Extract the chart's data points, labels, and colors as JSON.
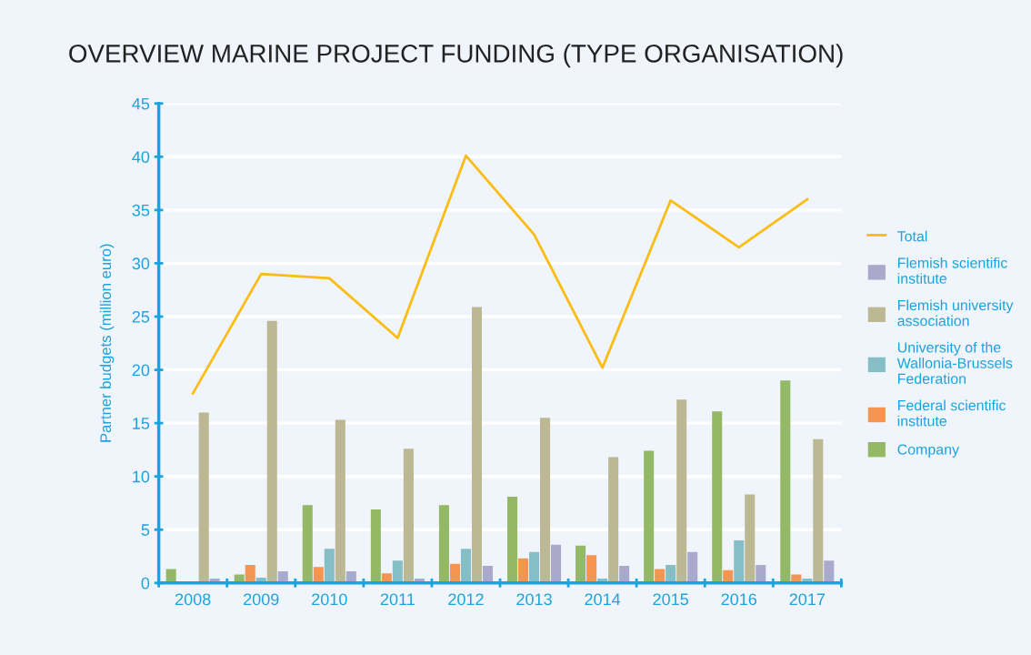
{
  "chart_data": {
    "type": "bar",
    "title": "OVERVIEW MARINE PROJECT FUNDING (TYPE ORGANISATION)",
    "ylabel": "Partner budgets (million euro)",
    "categories": [
      "2008",
      "2009",
      "2010",
      "2011",
      "2012",
      "2013",
      "2014",
      "2015",
      "2016",
      "2017"
    ],
    "series": [
      {
        "name": "Total",
        "type": "line",
        "color": "#fbbc14",
        "values": [
          17.8,
          29.0,
          28.6,
          23.0,
          40.1,
          32.7,
          20.2,
          35.9,
          31.5,
          36.0
        ]
      },
      {
        "name": "Flemish scientific institute",
        "color": "#aaa9cc",
        "values": [
          0.4,
          1.1,
          1.1,
          0.4,
          1.6,
          3.6,
          1.6,
          2.9,
          1.7,
          2.1
        ]
      },
      {
        "name": "Flemish university association",
        "color": "#bbb893",
        "values": [
          16.0,
          24.6,
          15.3,
          12.6,
          25.9,
          15.5,
          11.8,
          17.2,
          8.3,
          13.5
        ]
      },
      {
        "name": "University of the Wallonia-Brussels Federation",
        "color": "#86bec6",
        "values": [
          0.1,
          0.5,
          3.2,
          2.1,
          3.2,
          2.9,
          0.4,
          1.7,
          4.0,
          0.4
        ]
      },
      {
        "name": "Federal scientific institute",
        "color": "#f5954f",
        "values": [
          0,
          1.7,
          1.5,
          0.9,
          1.8,
          2.3,
          2.6,
          1.3,
          1.2,
          0.8
        ]
      },
      {
        "name": "Company",
        "color": "#93b966",
        "values": [
          1.3,
          0.8,
          7.3,
          6.9,
          7.3,
          8.1,
          3.5,
          12.4,
          16.1,
          19.0
        ]
      }
    ],
    "ylim": [
      0,
      45
    ],
    "yticks": [
      0,
      5,
      10,
      15,
      20,
      25,
      30,
      35,
      40,
      45
    ],
    "grid": "y",
    "legend": "right",
    "marker": "none",
    "line_style": "solid"
  }
}
